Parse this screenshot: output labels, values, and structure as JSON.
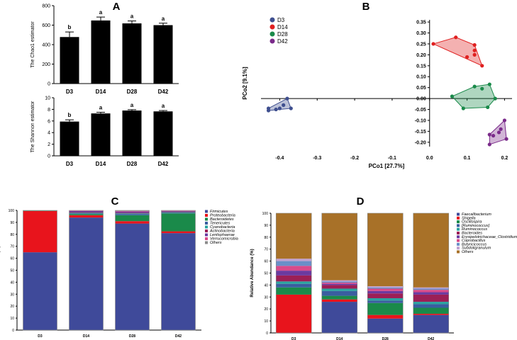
{
  "chart_data": [
    {
      "id": "A_top",
      "panel_label": "A",
      "type": "bar",
      "categories": [
        "D3",
        "D14",
        "D28",
        "D42"
      ],
      "values": [
        478,
        648,
        618,
        600
      ],
      "errors": [
        52,
        35,
        25,
        20
      ],
      "letters": [
        "b",
        "a",
        "a",
        "a"
      ],
      "ylabel": "The Chao1 estimator",
      "ylim": [
        0,
        800
      ],
      "yticks": [
        "0",
        "200",
        "400",
        "600",
        "800"
      ]
    },
    {
      "id": "A_bottom",
      "type": "bar",
      "categories": [
        "D3",
        "D14",
        "D28",
        "D42"
      ],
      "values": [
        5.9,
        7.3,
        7.8,
        7.65
      ],
      "errors": [
        0.3,
        0.2,
        0.15,
        0.15
      ],
      "letters": [
        "b",
        "a",
        "a",
        "a"
      ],
      "ylabel": "The Shannon estimator",
      "ylim": [
        0,
        10
      ],
      "yticks": [
        "0",
        "2",
        "4",
        "6",
        "8",
        "10"
      ]
    },
    {
      "id": "B",
      "panel_label": "B",
      "type": "scatter",
      "xlabel": "PCo1 [27.7%]",
      "ylabel": "PCo2 [9.1%]",
      "xlim": [
        -0.45,
        0.22
      ],
      "ylim": [
        -0.22,
        0.36
      ],
      "xticks": [
        -0.4,
        -0.3,
        -0.2,
        -0.1,
        0.0,
        0.1,
        0.2
      ],
      "xtick_labels": [
        "-0.4",
        "-0.3",
        "-0.2",
        "-0.1",
        "0.0",
        "0.1",
        "0.2"
      ],
      "yticks": [
        -0.2,
        -0.15,
        -0.1,
        -0.05,
        0.0,
        0.05,
        0.1,
        0.15,
        0.2,
        0.25,
        0.3,
        0.35
      ],
      "ytick_labels": [
        "-0.20",
        "-0.15",
        "-0.10",
        "-0.05",
        "0.00",
        "0.05",
        "0.10",
        "0.15",
        "0.20",
        "0.25",
        "0.30",
        "0.35"
      ],
      "series": [
        {
          "name": "D3",
          "color": "#3f4f8f",
          "points": [
            [
              -0.43,
              -0.055
            ],
            [
              -0.43,
              -0.045
            ],
            [
              -0.41,
              -0.05
            ],
            [
              -0.4,
              -0.045
            ],
            [
              -0.39,
              -0.03
            ],
            [
              -0.38,
              0.0
            ],
            [
              -0.37,
              -0.045
            ]
          ]
        },
        {
          "name": "D14",
          "color": "#e02020",
          "points": [
            [
              0.01,
              0.25
            ],
            [
              0.07,
              0.28
            ],
            [
              0.12,
              0.245
            ],
            [
              0.12,
              0.22
            ],
            [
              0.12,
              0.2
            ],
            [
              0.1,
              0.19
            ],
            [
              0.14,
              0.15
            ]
          ]
        },
        {
          "name": "D28",
          "color": "#1a8a4a",
          "points": [
            [
              0.06,
              0.01
            ],
            [
              0.09,
              -0.045
            ],
            [
              0.12,
              0.055
            ],
            [
              0.14,
              0.045
            ],
            [
              0.155,
              -0.04
            ],
            [
              0.16,
              0.065
            ],
            [
              0.175,
              0.0
            ]
          ]
        },
        {
          "name": "D42",
          "color": "#7a2a8a",
          "points": [
            [
              0.16,
              -0.21
            ],
            [
              0.16,
              -0.165
            ],
            [
              0.17,
              -0.17
            ],
            [
              0.185,
              -0.155
            ],
            [
              0.19,
              -0.14
            ],
            [
              0.2,
              -0.1
            ],
            [
              0.205,
              -0.185
            ]
          ]
        }
      ]
    },
    {
      "id": "C",
      "panel_label": "C",
      "type": "bar",
      "stacked": true,
      "ylabel": "Relative Abundance (%)",
      "ylim": [
        0,
        100
      ],
      "yticks": [
        "0",
        "10",
        "20",
        "30",
        "40",
        "50",
        "60",
        "70",
        "80",
        "90",
        "100"
      ],
      "categories": [
        "D3",
        "D14",
        "D28",
        "D42"
      ],
      "series": [
        {
          "name": "Firmicutes",
          "color": "#3f4a9a",
          "values": [
            65,
            94,
            89,
            81
          ]
        },
        {
          "name": "Proteobacteria",
          "color": "#e8141c",
          "values": [
            34.5,
            2,
            2,
            1.5
          ]
        },
        {
          "name": "Bacteroidetes",
          "color": "#1a8a4a",
          "values": [
            0.2,
            1,
            5,
            15
          ]
        },
        {
          "name": "Tenericutes",
          "color": "#3a5ea0",
          "values": [
            0.1,
            0.5,
            1,
            0.5
          ]
        },
        {
          "name": "Cyanobacteria",
          "color": "#2aa3a0",
          "values": [
            0.1,
            0.5,
            0.5,
            0.5
          ]
        },
        {
          "name": "Actinobacteria",
          "color": "#9c1f56",
          "values": [
            0,
            0.5,
            0.5,
            0.5
          ]
        },
        {
          "name": "Lentisphaerae",
          "color": "#6b3aa0",
          "values": [
            0,
            1,
            1,
            0.5
          ]
        },
        {
          "name": "Verrucomicrobia",
          "color": "#d94a8a",
          "values": [
            0,
            0.3,
            0.5,
            0.3
          ]
        },
        {
          "name": "Others",
          "color": "#8a8a8a",
          "values": [
            0.1,
            0.2,
            0.5,
            0.2
          ]
        }
      ]
    },
    {
      "id": "D",
      "panel_label": "D",
      "type": "bar",
      "stacked": true,
      "ylabel": "Relative Abundance (%)",
      "ylim": [
        0,
        100
      ],
      "yticks": [
        "0",
        "10",
        "20",
        "30",
        "40",
        "50",
        "60",
        "70",
        "80",
        "90",
        "100"
      ],
      "categories": [
        "D3",
        "D14",
        "D28",
        "D42"
      ],
      "series": [
        {
          "name": "Faecalibacterium",
          "color": "#3f4a9a",
          "values": [
            0,
            26,
            12,
            15
          ]
        },
        {
          "name": "Shigella",
          "color": "#e8141c",
          "values": [
            32,
            2,
            3,
            1
          ]
        },
        {
          "name": "Oscillospira",
          "color": "#1a8a4a",
          "values": [
            6,
            3,
            10,
            5
          ]
        },
        {
          "name": "[Ruminococcus]",
          "color": "#3a5ea0",
          "values": [
            3,
            4,
            2,
            3
          ]
        },
        {
          "name": "Ruminococcus",
          "color": "#2aa3a0",
          "values": [
            2,
            2,
            2,
            2
          ]
        },
        {
          "name": "Bacteroides",
          "color": "#9c1f56",
          "values": [
            5,
            3,
            4,
            6
          ]
        },
        {
          "name": "Erysipelotrichaceae_Clostridium",
          "color": "#6b3aa0",
          "values": [
            4,
            1,
            2,
            2
          ]
        },
        {
          "name": "Coprobacillus",
          "color": "#d94a8a",
          "values": [
            4,
            1,
            2,
            2
          ]
        },
        {
          "name": "Butyricicoccus",
          "color": "#6a8fc8",
          "values": [
            4,
            1,
            1,
            1
          ]
        },
        {
          "name": "Subdoligranulum",
          "color": "#c0a0d0",
          "values": [
            2,
            1,
            1,
            1
          ]
        },
        {
          "name": "Others",
          "color": "#a87128",
          "values": [
            38,
            56,
            61,
            62
          ]
        }
      ]
    }
  ]
}
